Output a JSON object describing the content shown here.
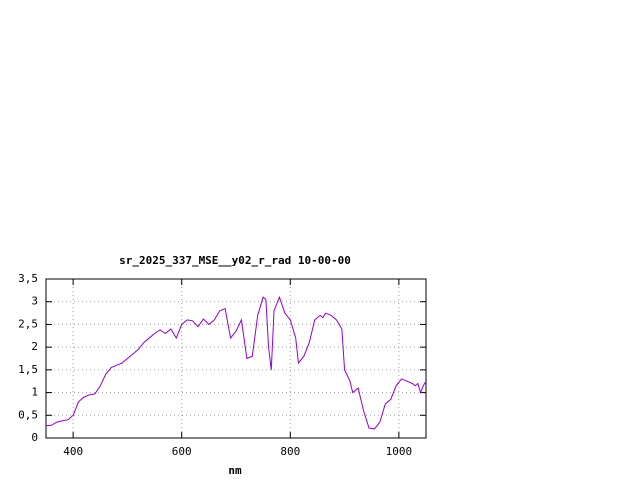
{
  "chart_data": {
    "type": "line",
    "title": "sr_2025_337_MSE__y02_r_rad 10-00-00",
    "x_label": "nm",
    "x": [
      350,
      360,
      370,
      380,
      390,
      400,
      410,
      420,
      430,
      440,
      450,
      460,
      470,
      480,
      490,
      500,
      510,
      520,
      530,
      540,
      550,
      560,
      570,
      580,
      590,
      600,
      610,
      620,
      630,
      640,
      650,
      660,
      670,
      680,
      690,
      700,
      710,
      720,
      730,
      740,
      750,
      755,
      760,
      765,
      770,
      780,
      790,
      800,
      810,
      815,
      825,
      835,
      845,
      855,
      860,
      865,
      875,
      885,
      895,
      900,
      910,
      915,
      925,
      935,
      945,
      955,
      965,
      975,
      985,
      995,
      1005,
      1015,
      1025,
      1030,
      1035,
      1040,
      1045,
      1050
    ],
    "series": [
      {
        "name": null,
        "color": "#9400d3",
        "values": [
          0.27,
          0.28,
          0.35,
          0.38,
          0.4,
          0.5,
          0.8,
          0.9,
          0.95,
          0.97,
          1.15,
          1.4,
          1.55,
          1.6,
          1.65,
          1.75,
          1.85,
          1.95,
          2.1,
          2.2,
          2.3,
          2.38,
          2.3,
          2.4,
          2.2,
          2.5,
          2.6,
          2.58,
          2.45,
          2.62,
          2.5,
          2.6,
          2.8,
          2.85,
          2.2,
          2.35,
          2.6,
          1.75,
          1.8,
          2.7,
          3.1,
          3.05,
          2.0,
          1.5,
          2.8,
          3.1,
          2.75,
          2.6,
          2.2,
          1.65,
          1.8,
          2.1,
          2.6,
          2.7,
          2.65,
          2.75,
          2.7,
          2.6,
          2.4,
          1.5,
          1.25,
          1.0,
          1.1,
          0.6,
          0.22,
          0.2,
          0.35,
          0.75,
          0.85,
          1.15,
          1.3,
          1.25,
          1.2,
          1.15,
          1.2,
          1.0,
          1.15,
          1.25
        ]
      }
    ],
    "xlim": [
      350,
      1050
    ],
    "xticks": [
      400,
      600,
      800,
      1000
    ],
    "ylim": [
      0,
      3.5
    ],
    "yticks": [
      0,
      {
        "value": 0.5,
        "label": "0,5"
      },
      1,
      {
        "value": 1.5,
        "label": "1,5"
      },
      2,
      {
        "value": 2.5,
        "label": "2,5"
      },
      3,
      {
        "value": 3.5,
        "label": "3,5"
      }
    ],
    "grid": true
  }
}
